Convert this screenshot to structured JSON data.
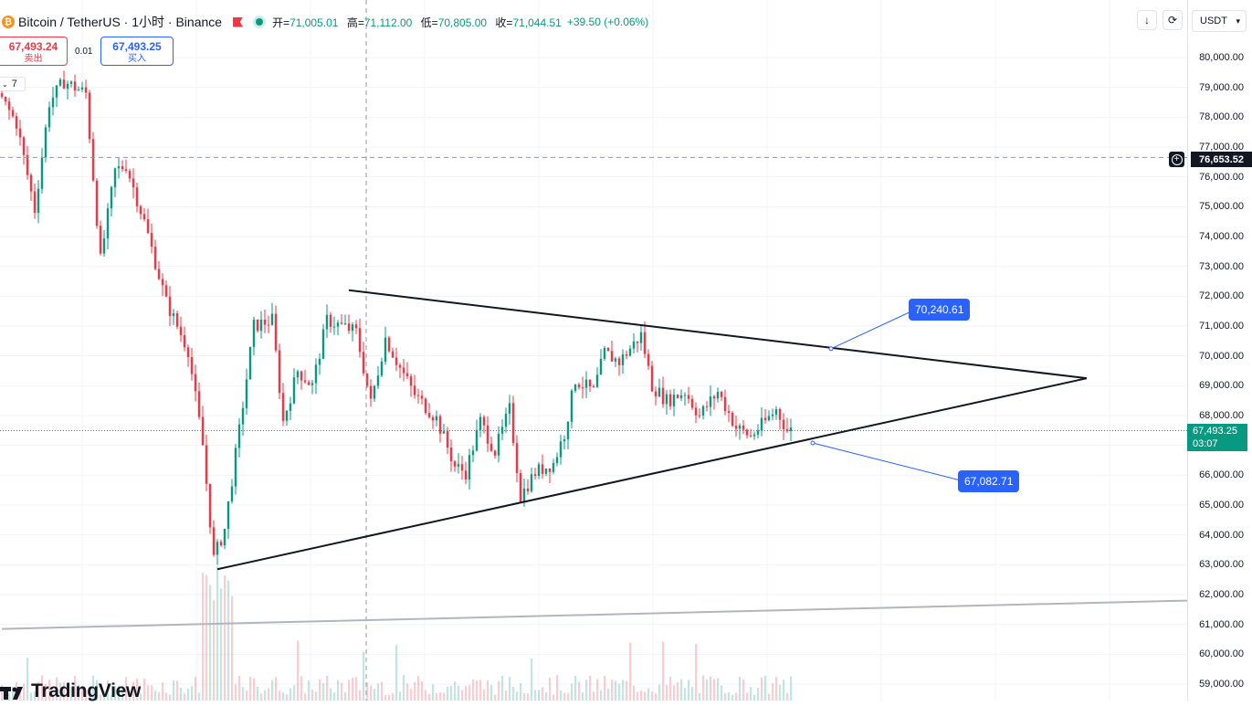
{
  "header": {
    "pair": "Bitcoin / TetherUS · 1小时 · Binance",
    "ohlc": [
      {
        "k": "开=",
        "v": "71,005.01"
      },
      {
        "k": "高=",
        "v": "71,112.00"
      },
      {
        "k": "低=",
        "v": "70,805.00"
      },
      {
        "k": "收=",
        "v": "71,044.51"
      }
    ],
    "change": "+39.50 (+0.06%)"
  },
  "trade": {
    "sell_price": "67,493.24",
    "sell_label": "卖出",
    "spread": "0.01",
    "buy_price": "67,493.25",
    "buy_label": "买入"
  },
  "indicator_count": "7",
  "toolbar": {
    "currency": "USDT"
  },
  "axis_labels": {
    "crosshair_price": "76,653.52",
    "last_price": "67,493.25",
    "countdown": "03:07"
  },
  "callouts": {
    "upper": "70,240.61",
    "lower": "67,082.71"
  },
  "brand": "TradingView",
  "colors": {
    "up": "#089981",
    "down": "#f23645",
    "accent": "#2962ff",
    "trendline": "#131722"
  },
  "chart_data": {
    "type": "candlestick",
    "title": "Bitcoin / TetherUS · 1小时 · Binance",
    "y_axis": {
      "min": 58700,
      "max": 80900,
      "ticks": [
        "80,000.00",
        "79,000.00",
        "78,000.00",
        "77,000.00",
        "76,000.00",
        "75,000.00",
        "74,000.00",
        "73,000.00",
        "72,000.00",
        "71,000.00",
        "70,000.00",
        "69,000.00",
        "68,000.00",
        "67,000.00",
        "66,000.00",
        "65,000.00",
        "64,000.00",
        "63,000.00",
        "62,000.00",
        "61,000.00",
        "60,000.00",
        "59,000.00"
      ]
    },
    "anchors": [
      {
        "i": 0,
        "p": 78800
      },
      {
        "i": 5,
        "p": 77800
      },
      {
        "i": 10,
        "p": 74900
      },
      {
        "i": 14,
        "p": 78500
      },
      {
        "i": 18,
        "p": 79200
      },
      {
        "i": 24,
        "p": 78800
      },
      {
        "i": 28,
        "p": 73200
      },
      {
        "i": 32,
        "p": 76200
      },
      {
        "i": 35,
        "p": 76400
      },
      {
        "i": 40,
        "p": 74500
      },
      {
        "i": 46,
        "p": 71800
      },
      {
        "i": 52,
        "p": 70200
      },
      {
        "i": 56,
        "p": 67000
      },
      {
        "i": 59,
        "p": 63200
      },
      {
        "i": 62,
        "p": 64200
      },
      {
        "i": 66,
        "p": 67500
      },
      {
        "i": 70,
        "p": 71000
      },
      {
        "i": 75,
        "p": 71200
      },
      {
        "i": 78,
        "p": 67800
      },
      {
        "i": 82,
        "p": 69500
      },
      {
        "i": 86,
        "p": 69000
      },
      {
        "i": 90,
        "p": 71200
      },
      {
        "i": 94,
        "p": 71000
      },
      {
        "i": 98,
        "p": 70800
      },
      {
        "i": 102,
        "p": 68400
      },
      {
        "i": 106,
        "p": 70600
      },
      {
        "i": 110,
        "p": 69600
      },
      {
        "i": 114,
        "p": 68700
      },
      {
        "i": 120,
        "p": 67900
      },
      {
        "i": 125,
        "p": 66300
      },
      {
        "i": 128,
        "p": 66100
      },
      {
        "i": 132,
        "p": 67800
      },
      {
        "i": 136,
        "p": 66800
      },
      {
        "i": 140,
        "p": 68200
      },
      {
        "i": 143,
        "p": 65300
      },
      {
        "i": 147,
        "p": 66100
      },
      {
        "i": 152,
        "p": 66400
      },
      {
        "i": 155,
        "p": 67400
      },
      {
        "i": 158,
        "p": 69200
      },
      {
        "i": 163,
        "p": 68800
      },
      {
        "i": 166,
        "p": 70100
      },
      {
        "i": 170,
        "p": 69800
      },
      {
        "i": 176,
        "p": 70700
      },
      {
        "i": 179,
        "p": 69000
      },
      {
        "i": 183,
        "p": 68500
      },
      {
        "i": 188,
        "p": 68800
      },
      {
        "i": 192,
        "p": 68000
      },
      {
        "i": 197,
        "p": 68800
      },
      {
        "i": 202,
        "p": 67600
      },
      {
        "i": 206,
        "p": 67300
      },
      {
        "i": 210,
        "p": 67800
      },
      {
        "i": 213,
        "p": 68200
      },
      {
        "i": 216,
        "p": 67500
      }
    ],
    "candle_count": 217,
    "last_price": 67493.25,
    "crosshair_price": 76653.52,
    "trendlines": [
      {
        "name": "upper",
        "from": {
          "i": 95,
          "p": 72200
        },
        "to": {
          "i": 297,
          "p": 69250
        }
      },
      {
        "name": "lower",
        "from": {
          "i": 59,
          "p": 62850
        },
        "to": {
          "i": 297,
          "p": 69250
        }
      },
      {
        "name": "support",
        "from": {
          "i": 0,
          "p": 60850
        },
        "to": {
          "i": 325,
          "p": 61800
        }
      }
    ],
    "callout_points": [
      {
        "label": "70,240.61",
        "i": 227,
        "p": 70240.61
      },
      {
        "label": "67,082.71",
        "i": 222,
        "p": 67082.71
      }
    ]
  }
}
